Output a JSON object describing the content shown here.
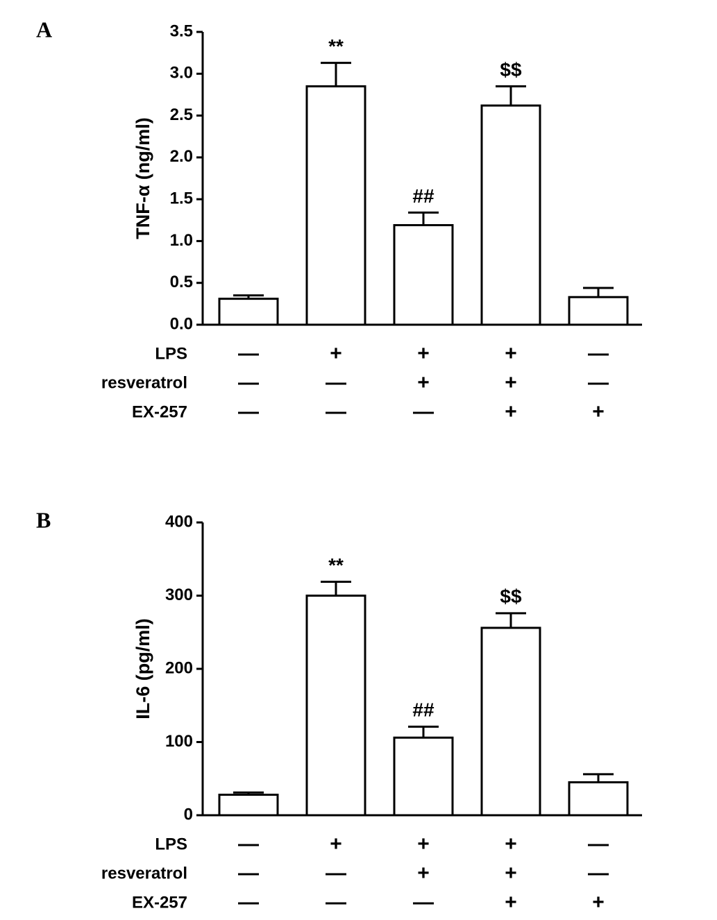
{
  "chart_data": [
    {
      "type": "bar",
      "panel_label": "A",
      "ylabel": "TNF-α (ng/ml)",
      "categories": [
        null,
        null,
        null,
        null,
        null
      ],
      "values": [
        0.31,
        2.85,
        1.19,
        2.62,
        0.33
      ],
      "errors": [
        0.04,
        0.28,
        0.15,
        0.23,
        0.11
      ],
      "annotations": [
        null,
        "**",
        "##",
        "$$",
        null
      ],
      "color": "#ffffff",
      "edgecolor": "#000000",
      "ylim": [
        0,
        3.5
      ],
      "yticks": [
        {
          "value": 0,
          "label": "0.0"
        },
        0.5,
        {
          "value": 1,
          "label": "1.0"
        },
        1.5,
        {
          "value": 2,
          "label": "2.0"
        },
        2.5,
        {
          "value": 3,
          "label": "3.0"
        },
        3.5
      ],
      "treatments": [
        {
          "name": "LPS",
          "signs": [
            "—",
            "+",
            "+",
            "+",
            "—"
          ]
        },
        {
          "name": "resveratrol",
          "signs": [
            "—",
            "—",
            "+",
            "+",
            "—"
          ]
        },
        {
          "name": "EX-257",
          "signs": [
            "—",
            "—",
            "—",
            "+",
            "+"
          ]
        }
      ]
    },
    {
      "type": "bar",
      "panel_label": "B",
      "ylabel": "IL-6 (pg/ml)",
      "categories": [
        null,
        null,
        null,
        null,
        null
      ],
      "values": [
        28,
        300,
        106,
        256,
        45
      ],
      "errors": [
        3,
        19,
        15,
        20,
        11
      ],
      "annotations": [
        null,
        "**",
        "##",
        "$$",
        null
      ],
      "color": "#ffffff",
      "edgecolor": "#000000",
      "ylim": [
        0,
        400
      ],
      "yticks": [
        0,
        100,
        200,
        300,
        400
      ],
      "treatments": [
        {
          "name": "LPS",
          "signs": [
            "—",
            "+",
            "+",
            "+",
            "—"
          ]
        },
        {
          "name": "resveratrol",
          "signs": [
            "—",
            "—",
            "+",
            "+",
            "—"
          ]
        },
        {
          "name": "EX-257",
          "signs": [
            "—",
            "—",
            "—",
            "+",
            "+"
          ]
        }
      ]
    }
  ]
}
